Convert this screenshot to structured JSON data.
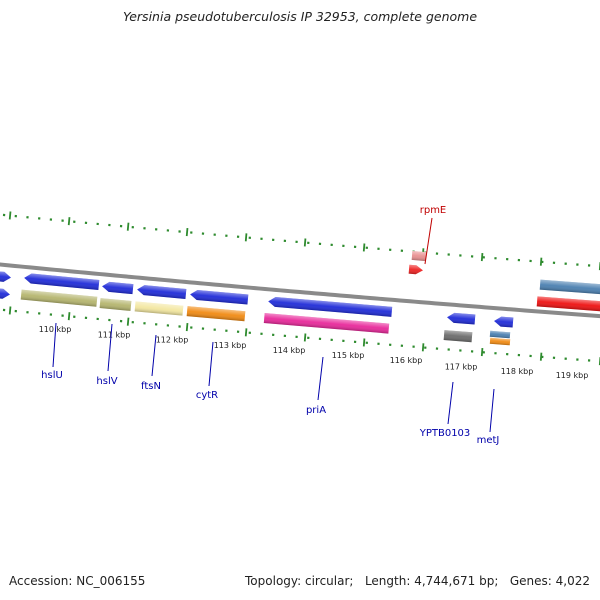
{
  "title": "Yersinia pseudotuberculosis IP 32953, complete genome",
  "footer": {
    "accession": "Accession: NC_006155",
    "topology": "Topology: circular;",
    "length": "Length: 4,744,671 bp;",
    "genes": "Genes: 4,022"
  },
  "colors": {
    "backbone": "#8a8a8a",
    "ticks": "#2e8b2e",
    "forward_label": "#0000aa",
    "reverse_label": "#c00000"
  },
  "scale_labels": [
    "110 kbp",
    "111 kbp",
    "112 kbp",
    "113 kbp",
    "114 kbp",
    "115 kbp",
    "116 kbp",
    "117 kbp",
    "118 kbp",
    "119 kbp"
  ],
  "features": [
    {
      "name": "",
      "strand": "forward",
      "color": "#1f2bd8",
      "label": ""
    },
    {
      "name": "",
      "strand": "reverse",
      "color": "#1f2bd8",
      "label": ""
    },
    {
      "name": "hslU",
      "strand": "forward",
      "color": "#1f2bd8",
      "label": "hslU"
    },
    {
      "name": "hslU-cat",
      "strand": "forward",
      "color": "#b5b56e",
      "label": ""
    },
    {
      "name": "hslV",
      "strand": "forward",
      "color": "#1f2bd8",
      "label": "hslV"
    },
    {
      "name": "hslV-cat",
      "strand": "forward",
      "color": "#b5b56e",
      "label": ""
    },
    {
      "name": "ftsN",
      "strand": "forward",
      "color": "#1f2bd8",
      "label": "ftsN"
    },
    {
      "name": "ftsN-cat",
      "strand": "forward",
      "color": "#f3e7a0",
      "label": ""
    },
    {
      "name": "cytR",
      "strand": "forward",
      "color": "#1f2bd8",
      "label": "cytR"
    },
    {
      "name": "cytR-cat",
      "strand": "forward",
      "color": "#f18a12",
      "label": ""
    },
    {
      "name": "priA",
      "strand": "forward",
      "color": "#1f2bd8",
      "label": "priA"
    },
    {
      "name": "priA-cat",
      "strand": "forward",
      "color": "#e8289a",
      "label": ""
    },
    {
      "name": "YPTB0103",
      "strand": "forward",
      "color": "#1f2bd8",
      "label": "YPTB0103"
    },
    {
      "name": "YPTB0103-cat",
      "strand": "forward",
      "color": "#6b6b6b",
      "label": ""
    },
    {
      "name": "metJ",
      "strand": "forward",
      "color": "#1f2bd8",
      "label": "metJ"
    },
    {
      "name": "metJ-cat1",
      "strand": "forward",
      "color": "#4a7fb0",
      "label": ""
    },
    {
      "name": "metJ-cat2",
      "strand": "forward",
      "color": "#f18a12",
      "label": ""
    },
    {
      "name": "rpmE",
      "strand": "reverse",
      "color": "#ee2222",
      "label": "rpmE"
    },
    {
      "name": "rpmE-cat",
      "strand": "reverse",
      "color": "#e89090",
      "label": ""
    },
    {
      "name": "",
      "strand": "reverse",
      "color": "#4a7fb0",
      "label": ""
    },
    {
      "name": "",
      "strand": "reverse",
      "color": "#ee1111",
      "label": ""
    }
  ]
}
